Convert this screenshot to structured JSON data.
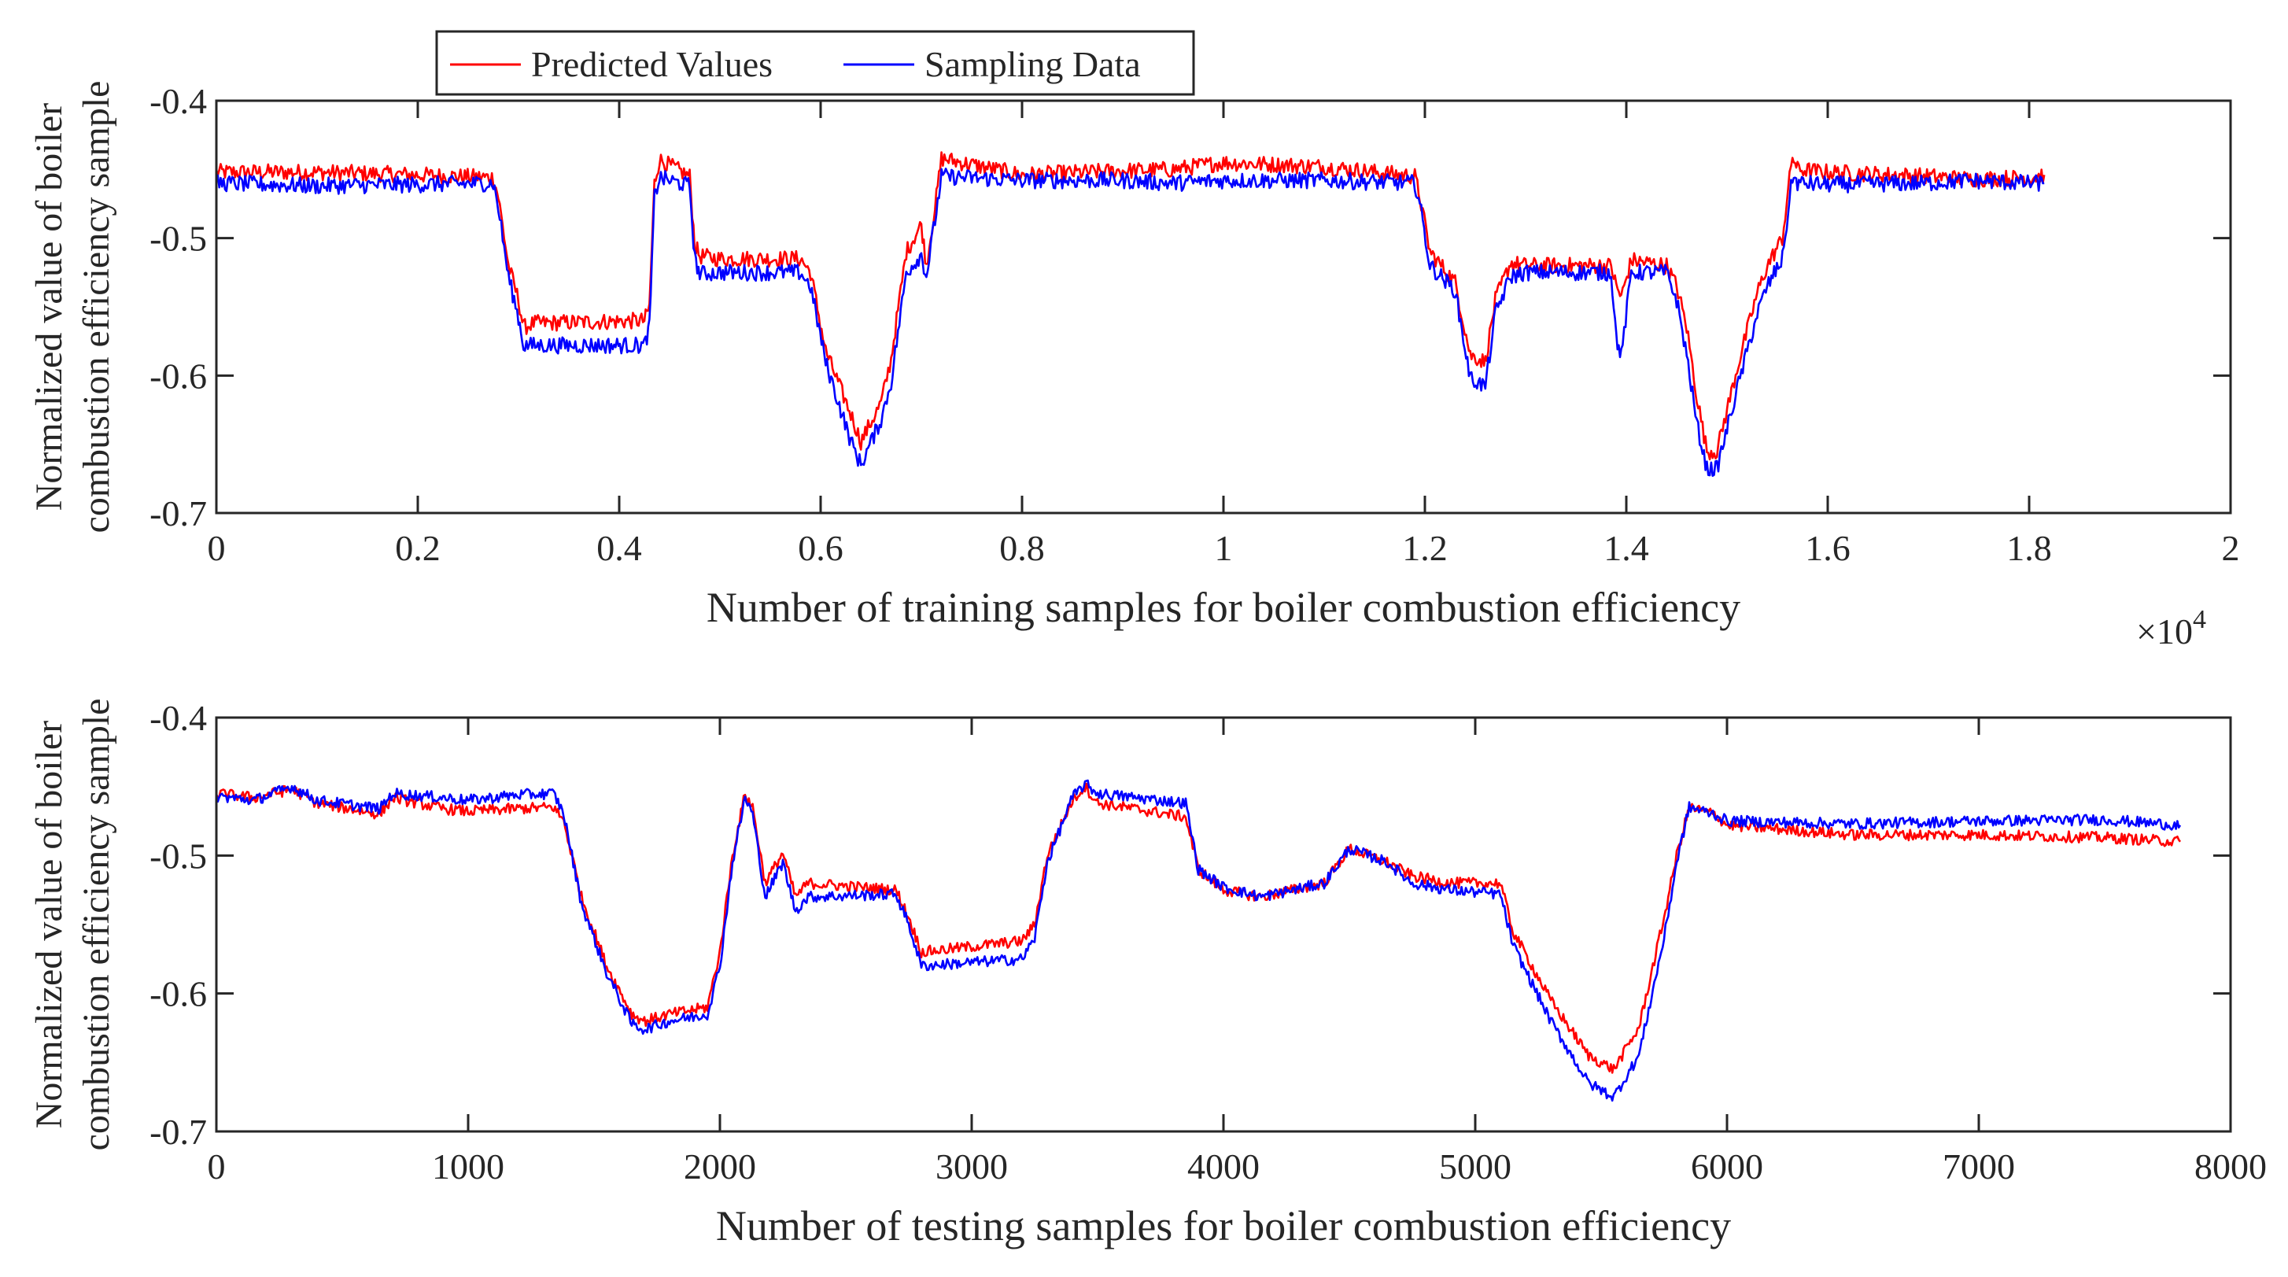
{
  "figure": {
    "legend": {
      "placement": "top-left above upper axes",
      "entries": [
        {
          "label": "Predicted Values",
          "color": "#ff0000"
        },
        {
          "label": "Sampling Data",
          "color": "#0000ff"
        }
      ]
    }
  },
  "chart_data": [
    {
      "type": "line",
      "title": "",
      "xlabel": "Number of training samples for boiler combustion efficiency",
      "ylabel_lines": [
        "Normalized value of boiler",
        "combustion efficiency sample"
      ],
      "x_exponent_label": "×10",
      "x_exponent_power": "4",
      "xlim": [
        0,
        20000
      ],
      "ylim": [
        -0.7,
        -0.4
      ],
      "xticks": [
        0,
        2000,
        4000,
        6000,
        8000,
        10000,
        12000,
        14000,
        16000,
        18000,
        20000
      ],
      "xtick_labels": [
        "0",
        "0.2",
        "0.4",
        "0.6",
        "0.8",
        "1",
        "1.2",
        "1.4",
        "1.6",
        "1.8",
        "2"
      ],
      "yticks": [
        -0.4,
        -0.5,
        -0.6,
        -0.7
      ],
      "ytick_labels": [
        "-0.4",
        "-0.5",
        "-0.6",
        "-0.7"
      ],
      "grid": false,
      "noise_amplitude": 0.006,
      "series": [
        {
          "name": "Predicted Values",
          "color": "#ff0000",
          "x": [
            0,
            1000,
            2000,
            2750,
            2800,
            2900,
            3000,
            3050,
            3150,
            4250,
            4300,
            4350,
            4400,
            4700,
            4750,
            4800,
            5000,
            5800,
            5900,
            6050,
            6200,
            6300,
            6400,
            6600,
            6700,
            6850,
            7000,
            7050,
            7150,
            7200,
            8000,
            9000,
            9500,
            10000,
            11000,
            11900,
            11950,
            12050,
            12300,
            12450,
            12600,
            12700,
            12850,
            13000,
            13850,
            13900,
            13950,
            14050,
            14400,
            14500,
            14600,
            14700,
            14800,
            14900,
            15100,
            15300,
            15400,
            15550,
            15650,
            15700,
            16000,
            17000,
            17400,
            18000,
            18150
          ],
          "y": [
            -0.452,
            -0.452,
            -0.454,
            -0.456,
            -0.47,
            -0.52,
            -0.545,
            -0.565,
            -0.562,
            -0.56,
            -0.55,
            -0.46,
            -0.443,
            -0.455,
            -0.505,
            -0.513,
            -0.515,
            -0.515,
            -0.525,
            -0.582,
            -0.61,
            -0.628,
            -0.648,
            -0.62,
            -0.588,
            -0.51,
            -0.49,
            -0.52,
            -0.47,
            -0.442,
            -0.454,
            -0.451,
            -0.45,
            -0.445,
            -0.448,
            -0.455,
            -0.47,
            -0.51,
            -0.532,
            -0.585,
            -0.59,
            -0.545,
            -0.518,
            -0.52,
            -0.52,
            -0.535,
            -0.543,
            -0.516,
            -0.52,
            -0.535,
            -0.565,
            -0.615,
            -0.655,
            -0.655,
            -0.595,
            -0.54,
            -0.52,
            -0.5,
            -0.44,
            -0.45,
            -0.452,
            -0.455,
            -0.457,
            -0.456,
            -0.454
          ]
        },
        {
          "name": "Sampling Data",
          "color": "#0000ff",
          "x": [
            0,
            1000,
            2000,
            2750,
            2800,
            2900,
            3000,
            3050,
            3150,
            4250,
            4300,
            4350,
            4400,
            4700,
            4750,
            4800,
            5000,
            5800,
            5900,
            6050,
            6200,
            6300,
            6400,
            6600,
            6700,
            6850,
            7000,
            7050,
            7150,
            7200,
            8000,
            9000,
            9500,
            10000,
            11000,
            11900,
            11950,
            12050,
            12300,
            12450,
            12600,
            12700,
            12850,
            13000,
            13850,
            13900,
            13950,
            14050,
            14400,
            14500,
            14600,
            14700,
            14800,
            14900,
            15100,
            15300,
            15400,
            15550,
            15650,
            15700,
            16000,
            17000,
            17400,
            18000,
            18150
          ],
          "y": [
            -0.46,
            -0.462,
            -0.461,
            -0.46,
            -0.478,
            -0.528,
            -0.558,
            -0.578,
            -0.578,
            -0.578,
            -0.565,
            -0.47,
            -0.456,
            -0.462,
            -0.515,
            -0.526,
            -0.525,
            -0.525,
            -0.535,
            -0.59,
            -0.625,
            -0.648,
            -0.665,
            -0.632,
            -0.605,
            -0.525,
            -0.512,
            -0.528,
            -0.48,
            -0.455,
            -0.458,
            -0.458,
            -0.46,
            -0.458,
            -0.458,
            -0.46,
            -0.475,
            -0.52,
            -0.538,
            -0.602,
            -0.608,
            -0.555,
            -0.528,
            -0.525,
            -0.525,
            -0.572,
            -0.586,
            -0.525,
            -0.525,
            -0.545,
            -0.585,
            -0.635,
            -0.668,
            -0.668,
            -0.61,
            -0.555,
            -0.535,
            -0.515,
            -0.455,
            -0.46,
            -0.461,
            -0.46,
            -0.458,
            -0.46,
            -0.46
          ]
        }
      ]
    },
    {
      "type": "line",
      "title": "",
      "xlabel": "Number of testing samples for boiler combustion efficiency",
      "ylabel_lines": [
        "Normalized value of boiler",
        "combustion efficiency sample"
      ],
      "xlim": [
        0,
        8000
      ],
      "ylim": [
        -0.7,
        -0.4
      ],
      "xticks": [
        0,
        1000,
        2000,
        3000,
        4000,
        5000,
        6000,
        7000,
        8000
      ],
      "xtick_labels": [
        "0",
        "1000",
        "2000",
        "3000",
        "4000",
        "5000",
        "6000",
        "7000",
        "8000"
      ],
      "yticks": [
        -0.4,
        -0.5,
        -0.6,
        -0.7
      ],
      "ytick_labels": [
        "-0.4",
        "-0.5",
        "-0.6",
        "-0.7"
      ],
      "grid": false,
      "noise_amplitude": 0.004,
      "series": [
        {
          "name": "Predicted Values",
          "color": "#ff0000",
          "x": [
            0,
            150,
            300,
            400,
            650,
            700,
            900,
            1000,
            1200,
            1340,
            1380,
            1450,
            1550,
            1650,
            1700,
            1800,
            1950,
            2000,
            2050,
            2100,
            2130,
            2180,
            2250,
            2300,
            2350,
            2700,
            2750,
            2800,
            3200,
            3250,
            3300,
            3400,
            3450,
            3500,
            3850,
            3900,
            4000,
            4150,
            4400,
            4500,
            4650,
            4750,
            4900,
            5100,
            5150,
            5300,
            5450,
            5550,
            5650,
            5750,
            5800,
            5850,
            5950,
            6000,
            6500,
            7000,
            7500,
            7800
          ],
          "y": [
            -0.455,
            -0.458,
            -0.452,
            -0.462,
            -0.47,
            -0.458,
            -0.466,
            -0.468,
            -0.466,
            -0.465,
            -0.475,
            -0.53,
            -0.58,
            -0.615,
            -0.62,
            -0.615,
            -0.61,
            -0.57,
            -0.5,
            -0.455,
            -0.465,
            -0.52,
            -0.498,
            -0.53,
            -0.52,
            -0.525,
            -0.545,
            -0.57,
            -0.562,
            -0.55,
            -0.5,
            -0.46,
            -0.45,
            -0.462,
            -0.472,
            -0.51,
            -0.525,
            -0.53,
            -0.52,
            -0.495,
            -0.505,
            -0.515,
            -0.52,
            -0.52,
            -0.555,
            -0.605,
            -0.645,
            -0.655,
            -0.625,
            -0.545,
            -0.5,
            -0.465,
            -0.47,
            -0.478,
            -0.485,
            -0.485,
            -0.487,
            -0.49
          ]
        },
        {
          "name": "Sampling Data",
          "color": "#0000ff",
          "x": [
            0,
            150,
            300,
            400,
            650,
            700,
            900,
            1000,
            1200,
            1340,
            1380,
            1450,
            1550,
            1650,
            1700,
            1800,
            1950,
            2000,
            2050,
            2100,
            2130,
            2180,
            2250,
            2300,
            2350,
            2700,
            2750,
            2800,
            3200,
            3250,
            3300,
            3400,
            3450,
            3500,
            3850,
            3900,
            4000,
            4150,
            4400,
            4500,
            4650,
            4750,
            4900,
            5100,
            5150,
            5300,
            5450,
            5550,
            5650,
            5750,
            5800,
            5850,
            5950,
            6000,
            6500,
            7000,
            7500,
            7800
          ],
          "y": [
            -0.457,
            -0.46,
            -0.45,
            -0.46,
            -0.466,
            -0.455,
            -0.458,
            -0.46,
            -0.456,
            -0.455,
            -0.47,
            -0.535,
            -0.585,
            -0.622,
            -0.626,
            -0.62,
            -0.615,
            -0.58,
            -0.505,
            -0.458,
            -0.47,
            -0.53,
            -0.505,
            -0.54,
            -0.53,
            -0.528,
            -0.55,
            -0.58,
            -0.575,
            -0.56,
            -0.505,
            -0.458,
            -0.448,
            -0.455,
            -0.462,
            -0.51,
            -0.523,
            -0.53,
            -0.52,
            -0.495,
            -0.505,
            -0.52,
            -0.525,
            -0.528,
            -0.565,
            -0.62,
            -0.665,
            -0.675,
            -0.645,
            -0.56,
            -0.505,
            -0.465,
            -0.47,
            -0.475,
            -0.477,
            -0.475,
            -0.474,
            -0.478
          ]
        }
      ]
    }
  ]
}
